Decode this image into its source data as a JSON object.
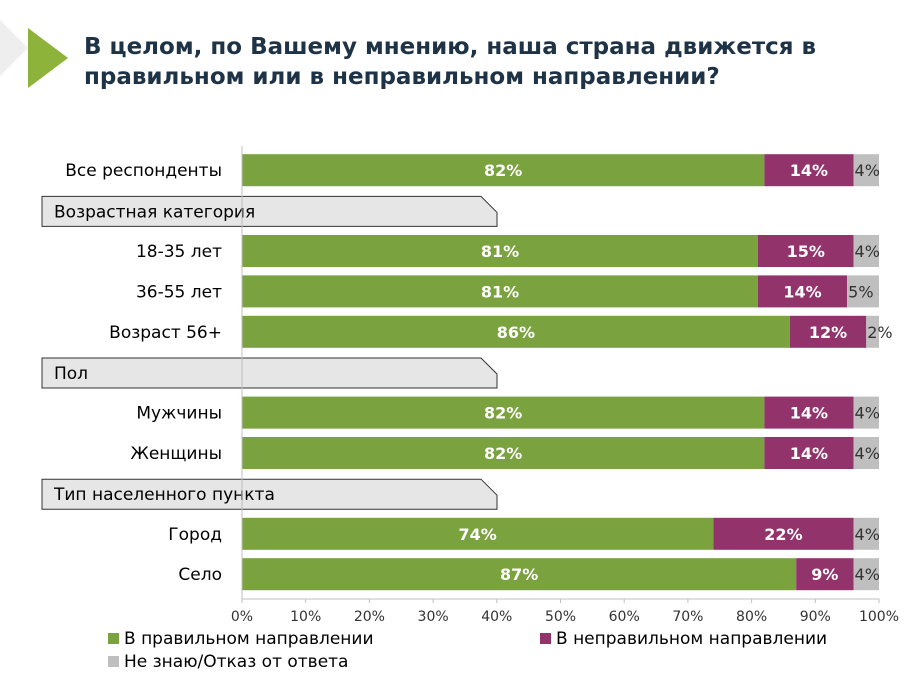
{
  "chart_data": {
    "type": "bar",
    "orientation": "horizontal",
    "stacked": true,
    "title_lines": [
      "В целом, по Вашему мнению, наша страна движется в",
      "правильном или в неправильном направлении?"
    ],
    "rows": [
      {
        "kind": "bar",
        "label": "Все респонденты",
        "values": [
          82,
          14,
          4
        ],
        "labels": [
          "82%",
          "14%",
          "4%"
        ]
      },
      {
        "kind": "category",
        "label": "Возрастная категория"
      },
      {
        "kind": "bar",
        "label": "18-35 лет",
        "values": [
          81,
          15,
          4
        ],
        "labels": [
          "81%",
          "15%",
          "4%"
        ]
      },
      {
        "kind": "bar",
        "label": "36-55 лет",
        "values": [
          81,
          14,
          5
        ],
        "labels": [
          "81%",
          "14%",
          "5%"
        ]
      },
      {
        "kind": "bar",
        "label": "Возраст 56+",
        "values": [
          86,
          12,
          2
        ],
        "labels": [
          "86%",
          "12%",
          "2%"
        ]
      },
      {
        "kind": "category",
        "label": "Пол"
      },
      {
        "kind": "bar",
        "label": "Мужчины",
        "values": [
          82,
          14,
          4
        ],
        "labels": [
          "82%",
          "14%",
          "4%"
        ]
      },
      {
        "kind": "bar",
        "label": "Женщины",
        "values": [
          82,
          14,
          4
        ],
        "labels": [
          "82%",
          "14%",
          "4%"
        ]
      },
      {
        "kind": "category",
        "label": "Тип населенного пункта"
      },
      {
        "kind": "bar",
        "label": "Город",
        "values": [
          74,
          22,
          4
        ],
        "labels": [
          "74%",
          "22%",
          "4%"
        ]
      },
      {
        "kind": "bar",
        "label": "Село",
        "values": [
          87,
          9,
          4
        ],
        "labels": [
          "87%",
          "9%",
          "4%"
        ]
      }
    ],
    "series": [
      {
        "name": "В правильном направлении",
        "color": "#7aa23f"
      },
      {
        "name": "В неправильном направлении",
        "color": "#93336b"
      },
      {
        "name": "Не знаю/Отказ от ответа",
        "color": "#bfbfbf"
      }
    ],
    "xlim": [
      0,
      100
    ],
    "xticks": [
      "0%",
      "10%",
      "20%",
      "30%",
      "40%",
      "50%",
      "60%",
      "70%",
      "80%",
      "90%",
      "100%"
    ],
    "grid": false,
    "legend_position": "bottom-left"
  },
  "colors": {
    "title": "#1f3346",
    "accent_triangle": "#8db33a",
    "category_box_fill": "#e6e6e6",
    "category_box_stroke": "#333333"
  }
}
